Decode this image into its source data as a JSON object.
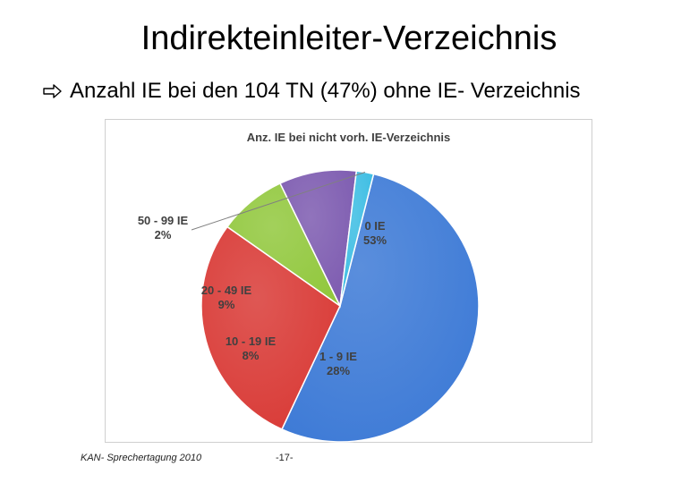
{
  "slide": {
    "title": "Indirekteinleiter-Verzeichnis",
    "bullet_text": "Anzahl IE bei den 104 TN (47%) ohne IE- Verzeichnis",
    "bullet_icon": "hollow-right-arrow-icon"
  },
  "footer": {
    "left": "KAN- Sprechertagung 2010",
    "page": "-17-"
  },
  "chart_data": {
    "type": "pie",
    "title": "Anz. IE bei nicht vorh. IE-Verzeichnis",
    "slices": [
      {
        "label": "0 IE",
        "pct_label": "53%",
        "value": 53,
        "color": "#3d7ad6"
      },
      {
        "label": "1 - 9 IE",
        "pct_label": "28%",
        "value": 28,
        "color": "#d93a36"
      },
      {
        "label": "10 - 19 IE",
        "pct_label": "8%",
        "value": 8,
        "color": "#92c83e"
      },
      {
        "label": "20 - 49 IE",
        "pct_label": "9%",
        "value": 9,
        "color": "#7d5bb0"
      },
      {
        "label": "50 - 99 IE",
        "pct_label": "2%",
        "value": 2,
        "color": "#3cbde3"
      }
    ]
  }
}
